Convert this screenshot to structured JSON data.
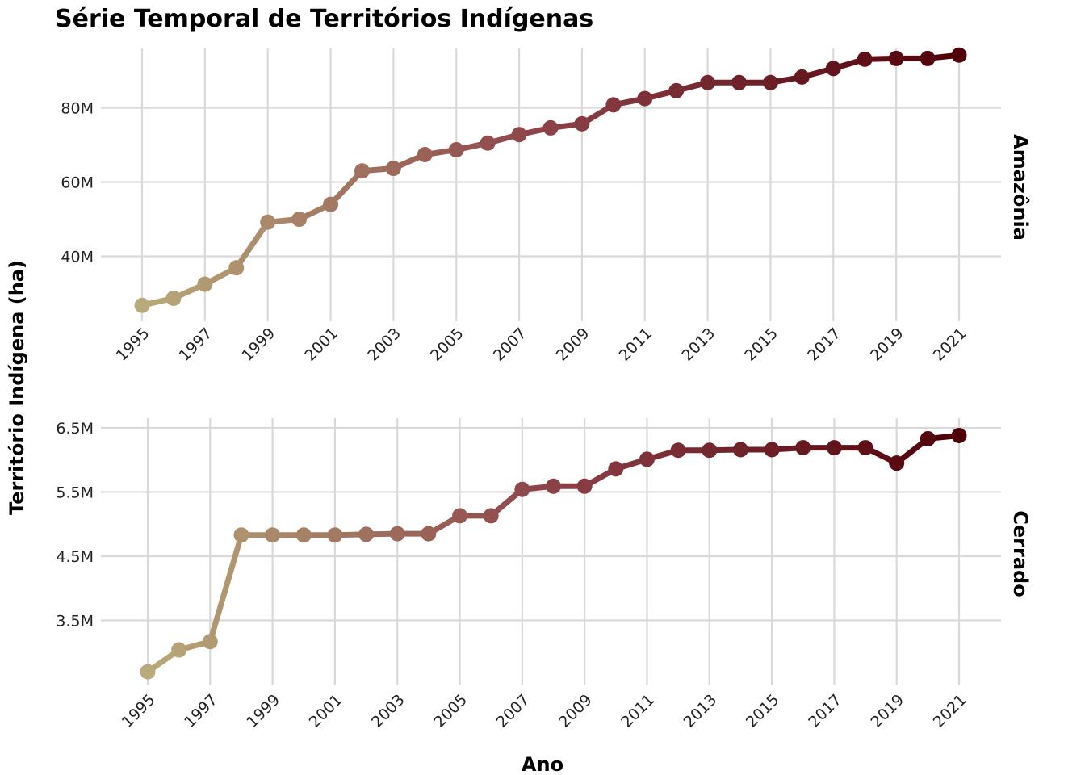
{
  "chart_data": {
    "type": "line",
    "title": "Série Temporal de Territórios Indígenas",
    "xlabel": "Ano",
    "ylabel": "Território Indígena (ha)",
    "grid": true,
    "legend": "none",
    "color_scale": {
      "low": "#b8aa7a",
      "mid": "#8c4048",
      "high": "#500008"
    },
    "x_ticks": [
      1995,
      1997,
      1999,
      2001,
      2003,
      2005,
      2007,
      2009,
      2011,
      2013,
      2015,
      2017,
      2019,
      2021
    ],
    "x": [
      1995,
      1996,
      1997,
      1998,
      1999,
      2000,
      2001,
      2002,
      2003,
      2004,
      2005,
      2006,
      2007,
      2008,
      2009,
      2010,
      2011,
      2012,
      2013,
      2014,
      2015,
      2016,
      2017,
      2018,
      2019,
      2020,
      2021
    ],
    "panels": [
      {
        "facet": "Amazônia",
        "ylim": [
          22500000,
          96000000
        ],
        "y_ticks": [
          40000000,
          60000000,
          80000000
        ],
        "y_tick_labels": [
          "40M",
          "60M",
          "80M"
        ],
        "values": [
          26800000,
          28700000,
          32500000,
          36900000,
          49200000,
          50000000,
          54000000,
          63000000,
          63700000,
          67400000,
          68700000,
          70500000,
          72800000,
          74600000,
          75700000,
          80800000,
          82500000,
          84600000,
          86800000,
          86800000,
          86800000,
          88300000,
          90600000,
          93100000,
          93300000,
          93300000,
          94200000
        ]
      },
      {
        "facet": "Cerrado",
        "ylim": [
          2500000,
          6650000
        ],
        "y_ticks": [
          3500000,
          4500000,
          5500000,
          6500000
        ],
        "y_tick_labels": [
          "3.5M",
          "4.5M",
          "5.5M",
          "6.5M"
        ],
        "values": [
          2700000,
          3040000,
          3170000,
          4830000,
          4830000,
          4830000,
          4830000,
          4840000,
          4850000,
          4850000,
          5130000,
          5130000,
          5540000,
          5590000,
          5590000,
          5860000,
          6010000,
          6150000,
          6150000,
          6160000,
          6160000,
          6190000,
          6190000,
          6190000,
          5950000,
          6330000,
          6380000
        ]
      }
    ]
  }
}
